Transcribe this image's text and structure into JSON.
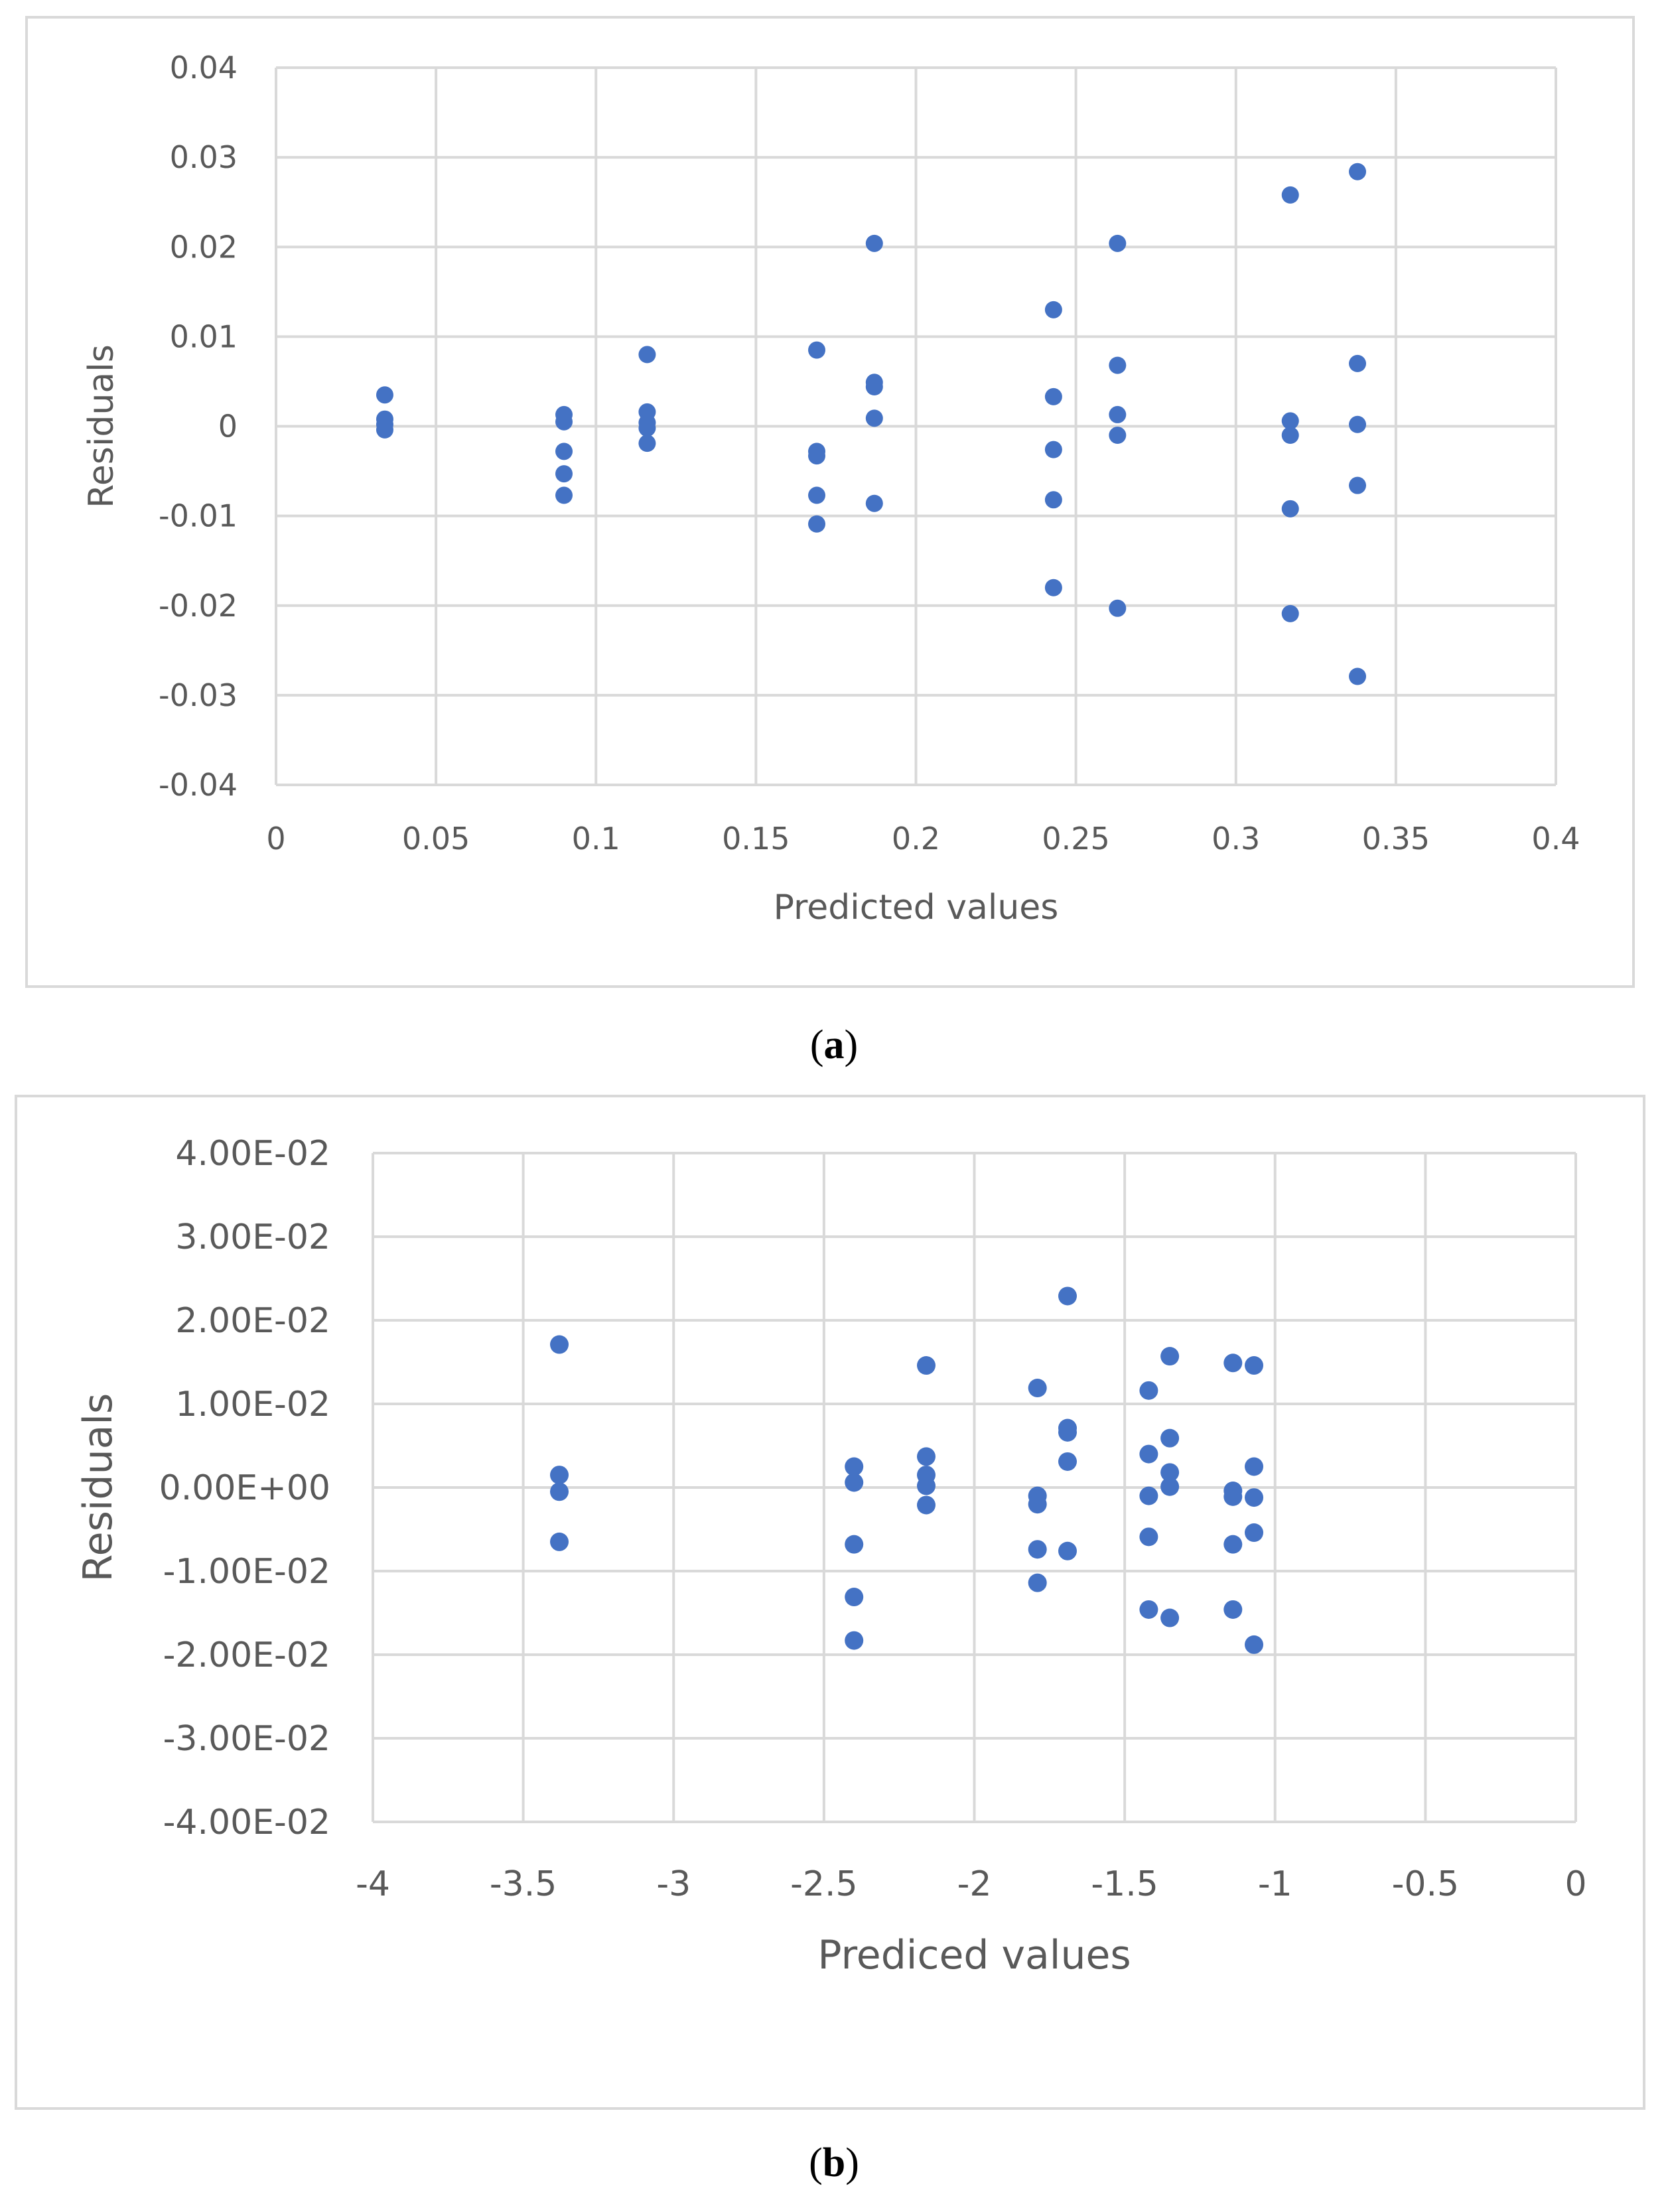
{
  "colors": {
    "marker": "#4472C4",
    "grid": "#d9d9d9",
    "text": "#595959"
  },
  "chart_data": [
    {
      "type": "scatter",
      "caption": "a",
      "title": "",
      "xlabel": "Predicted values",
      "ylabel": "Residuals",
      "xlim": [
        0,
        0.4
      ],
      "ylim": [
        -0.04,
        0.04
      ],
      "x_ticks": [
        "0",
        "0.05",
        "0.1",
        "0.15",
        "0.2",
        "0.25",
        "0.3",
        "0.35",
        "0.4"
      ],
      "y_ticks": [
        "0.04",
        "0.03",
        "0.02",
        "0.01",
        "0",
        "-0.01",
        "-0.02",
        "-0.03",
        "-0.04"
      ],
      "x_tick_values": [
        0,
        0.05,
        0.1,
        0.15,
        0.2,
        0.25,
        0.3,
        0.35,
        0.4
      ],
      "y_tick_values": [
        0.04,
        0.03,
        0.02,
        0.01,
        0,
        -0.01,
        -0.02,
        -0.03,
        -0.04
      ],
      "series": [
        {
          "name": "Residuals",
          "points": [
            [
              0.034,
              0.0035
            ],
            [
              0.034,
              0.0008
            ],
            [
              0.034,
              0.0002
            ],
            [
              0.034,
              -0.0004
            ],
            [
              0.09,
              0.0013
            ],
            [
              0.09,
              0.0005
            ],
            [
              0.09,
              -0.0028
            ],
            [
              0.09,
              -0.0053
            ],
            [
              0.09,
              -0.0077
            ],
            [
              0.116,
              0.008
            ],
            [
              0.116,
              0.0016
            ],
            [
              0.116,
              0.0004
            ],
            [
              0.116,
              -0.0002
            ],
            [
              0.116,
              -0.0019
            ],
            [
              0.169,
              0.0085
            ],
            [
              0.169,
              -0.0028
            ],
            [
              0.169,
              -0.0033
            ],
            [
              0.169,
              -0.0077
            ],
            [
              0.169,
              -0.0109
            ],
            [
              0.187,
              0.0204
            ],
            [
              0.187,
              0.0049
            ],
            [
              0.187,
              0.0044
            ],
            [
              0.187,
              0.0009
            ],
            [
              0.187,
              -0.0086
            ],
            [
              0.243,
              0.013
            ],
            [
              0.243,
              0.0033
            ],
            [
              0.243,
              -0.0026
            ],
            [
              0.243,
              -0.0082
            ],
            [
              0.243,
              -0.018
            ],
            [
              0.263,
              0.0204
            ],
            [
              0.263,
              0.0068
            ],
            [
              0.263,
              0.0013
            ],
            [
              0.263,
              -0.001
            ],
            [
              0.263,
              -0.0203
            ],
            [
              0.317,
              0.0258
            ],
            [
              0.317,
              0.0006
            ],
            [
              0.317,
              -0.001
            ],
            [
              0.317,
              -0.0092
            ],
            [
              0.317,
              -0.0209
            ],
            [
              0.338,
              0.0284
            ],
            [
              0.338,
              0.007
            ],
            [
              0.338,
              0.0002
            ],
            [
              0.338,
              -0.0066
            ],
            [
              0.338,
              -0.0279
            ]
          ]
        }
      ]
    },
    {
      "type": "scatter",
      "caption": "b",
      "title": "",
      "xlabel": "Prediced values",
      "ylabel": "Residuals",
      "xlim": [
        -4,
        0
      ],
      "ylim": [
        -0.04,
        0.04
      ],
      "x_ticks": [
        "-4",
        "-3.5",
        "-3",
        "-2.5",
        "-2",
        "-1.5",
        "-1",
        "-0.5",
        "0"
      ],
      "y_ticks": [
        "4.00E-02",
        "3.00E-02",
        "2.00E-02",
        "1.00E-02",
        "0.00E+00",
        "-1.00E-02",
        "-2.00E-02",
        "-3.00E-02",
        "-4.00E-02"
      ],
      "x_tick_values": [
        -4,
        -3.5,
        -3,
        -2.5,
        -2,
        -1.5,
        -1,
        -0.5,
        0
      ],
      "y_tick_values": [
        0.04,
        0.03,
        0.02,
        0.01,
        0,
        -0.01,
        -0.02,
        -0.03,
        -0.04
      ],
      "series": [
        {
          "name": "Residuals",
          "points": [
            [
              -3.38,
              0.0171
            ],
            [
              -3.38,
              0.0015
            ],
            [
              -3.38,
              -0.0005
            ],
            [
              -3.38,
              -0.0065
            ],
            [
              -2.4,
              0.0025
            ],
            [
              -2.4,
              0.0006
            ],
            [
              -2.4,
              -0.0068
            ],
            [
              -2.4,
              -0.0131
            ],
            [
              -2.4,
              -0.0183
            ],
            [
              -2.16,
              0.0146
            ],
            [
              -2.16,
              0.0037
            ],
            [
              -2.16,
              0.0015
            ],
            [
              -2.16,
              0.0002
            ],
            [
              -2.16,
              -0.0021
            ],
            [
              -1.79,
              0.0119
            ],
            [
              -1.79,
              -0.001
            ],
            [
              -1.79,
              -0.002
            ],
            [
              -1.79,
              -0.0074
            ],
            [
              -1.79,
              -0.0114
            ],
            [
              -1.69,
              0.0229
            ],
            [
              -1.69,
              0.0071
            ],
            [
              -1.69,
              0.0066
            ],
            [
              -1.69,
              0.0031
            ],
            [
              -1.69,
              -0.0076
            ],
            [
              -1.42,
              0.0116
            ],
            [
              -1.42,
              0.004
            ],
            [
              -1.42,
              -0.001
            ],
            [
              -1.42,
              -0.0059
            ],
            [
              -1.42,
              -0.0146
            ],
            [
              -1.35,
              0.0157
            ],
            [
              -1.35,
              0.0059
            ],
            [
              -1.35,
              0.0018
            ],
            [
              -1.35,
              0.0001
            ],
            [
              -1.35,
              -0.0156
            ],
            [
              -1.14,
              0.0149
            ],
            [
              -1.14,
              -0.0004
            ],
            [
              -1.14,
              -0.0011
            ],
            [
              -1.14,
              -0.0068
            ],
            [
              -1.14,
              -0.0146
            ],
            [
              -1.07,
              0.0146
            ],
            [
              -1.07,
              0.0025
            ],
            [
              -1.07,
              -0.0012
            ],
            [
              -1.07,
              -0.0054
            ],
            [
              -1.07,
              -0.0188
            ]
          ]
        }
      ]
    }
  ]
}
